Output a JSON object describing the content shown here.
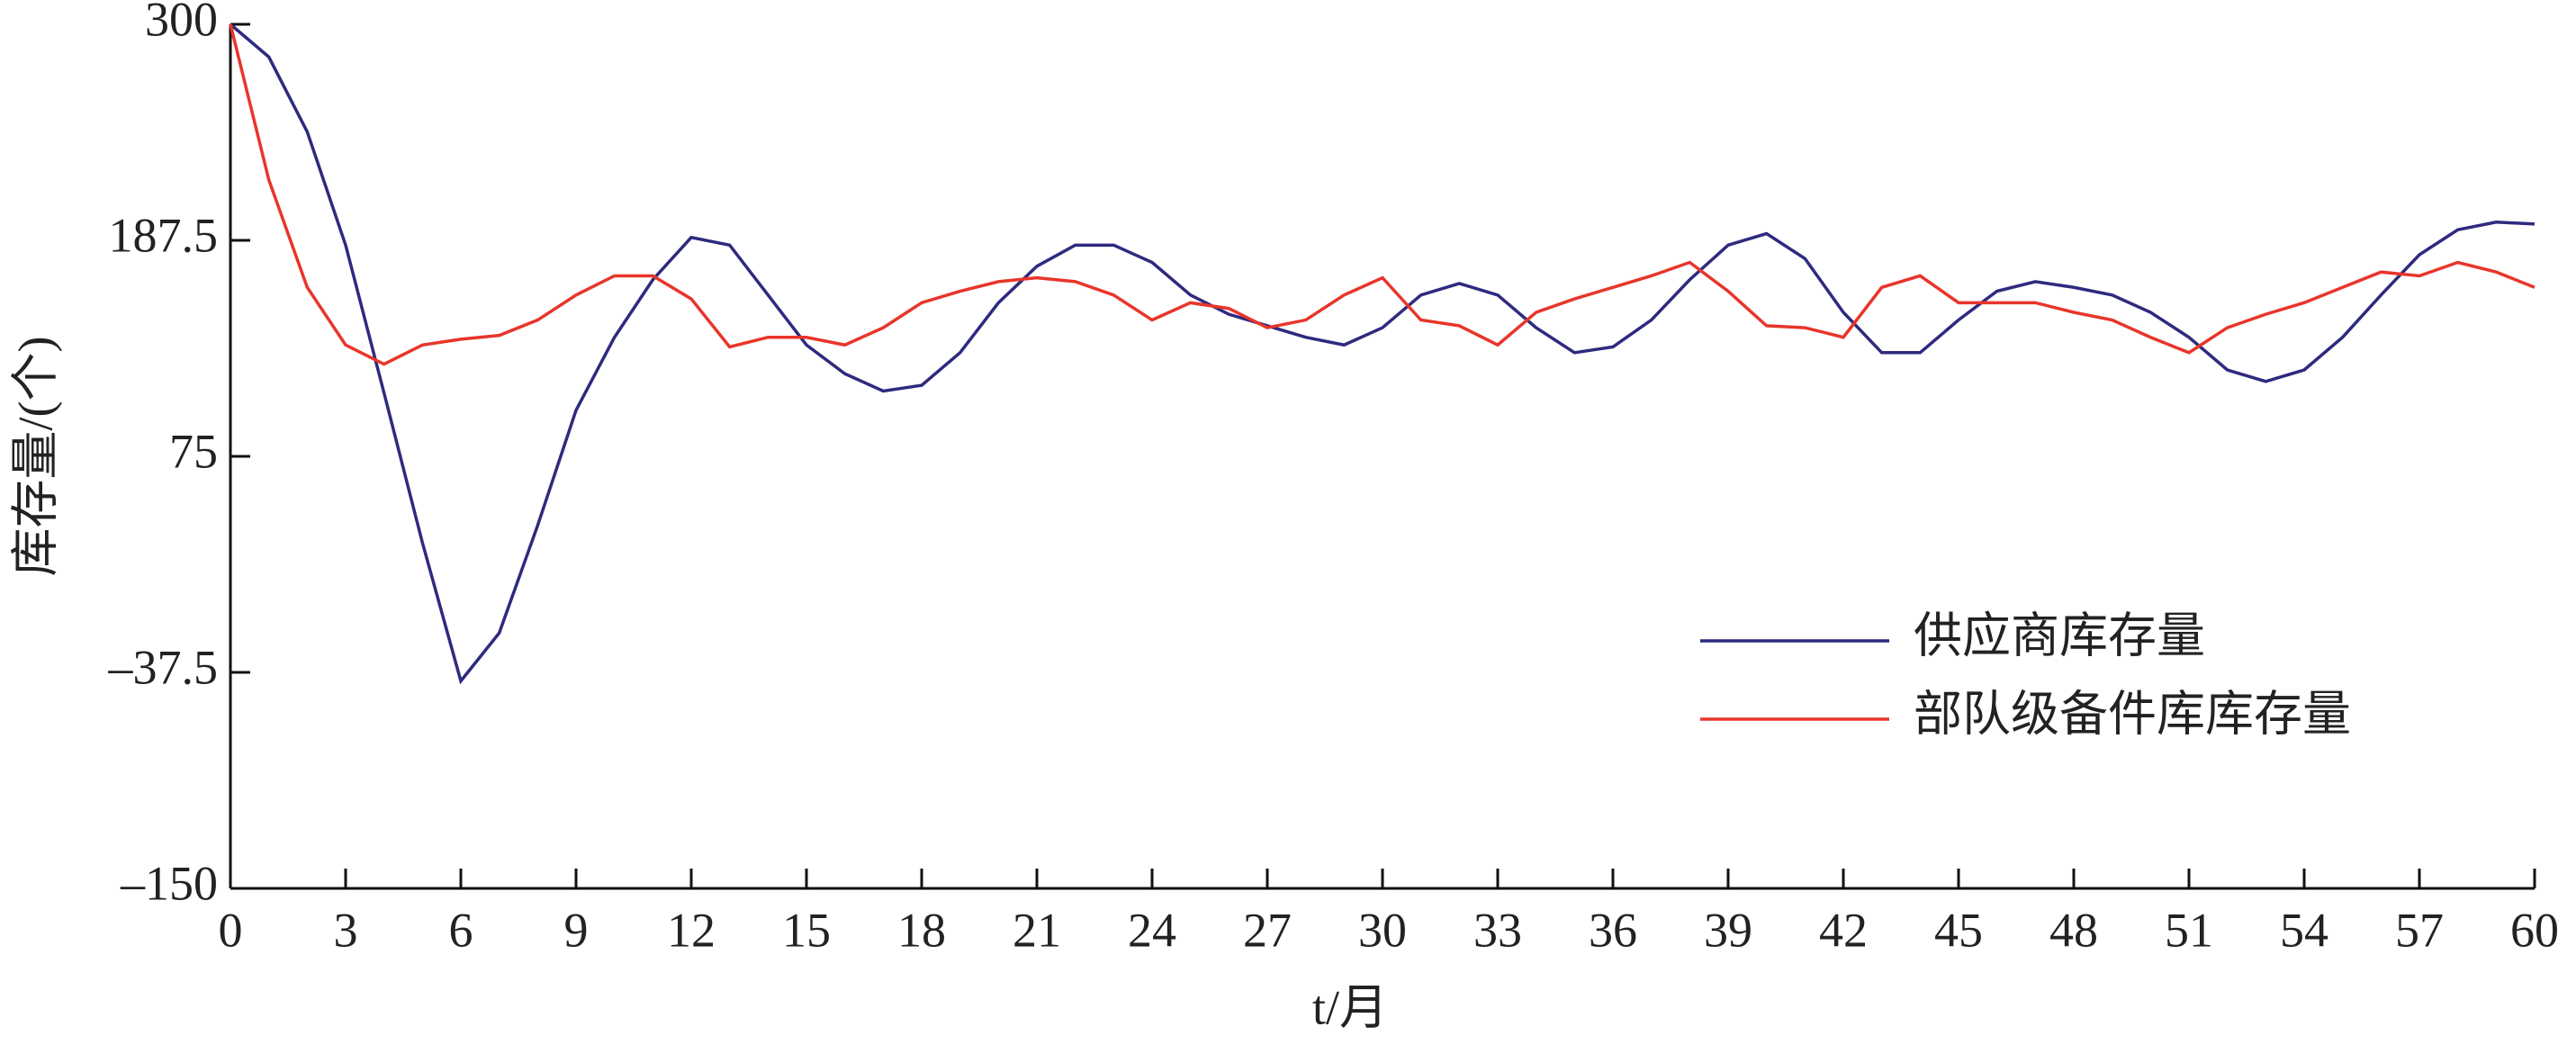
{
  "chart_data": {
    "type": "line",
    "x_label": "t/月",
    "y_label": "库存量/(个)",
    "x": [
      0,
      1,
      2,
      3,
      4,
      5,
      6,
      7,
      8,
      9,
      10,
      11,
      12,
      13,
      14,
      15,
      16,
      17,
      18,
      19,
      20,
      21,
      22,
      23,
      24,
      25,
      26,
      27,
      28,
      29,
      30,
      31,
      32,
      33,
      34,
      35,
      36,
      37,
      38,
      39,
      40,
      41,
      42,
      43,
      44,
      45,
      46,
      47,
      48,
      49,
      50,
      51,
      52,
      53,
      54,
      55,
      56,
      57,
      58,
      59,
      60
    ],
    "series": [
      {
        "name": "供应商库存量",
        "color": "#2e2a7f",
        "values": [
          300,
          283,
          244,
          185,
          108,
          30,
          -42,
          -17,
          39,
          99,
          137,
          167,
          189,
          185,
          159,
          133,
          118,
          109,
          112,
          129,
          155,
          174,
          185,
          185,
          176,
          159,
          149,
          143,
          137,
          133,
          142,
          159,
          165,
          159,
          142,
          129,
          132,
          146,
          167,
          185,
          191,
          178,
          150,
          129,
          129,
          146,
          161,
          166,
          163,
          159,
          150,
          137,
          120,
          114,
          120,
          137,
          159,
          180,
          193,
          197,
          196
        ]
      },
      {
        "name": "部队级备件库库存量",
        "color": "#e8352b",
        "values": [
          300,
          219,
          163,
          133,
          123,
          133,
          136,
          138,
          146,
          159,
          169,
          169,
          157,
          132,
          137,
          137,
          133,
          142,
          155,
          161,
          166,
          168,
          166,
          159,
          146,
          155,
          152,
          142,
          146,
          159,
          168,
          146,
          143,
          133,
          150,
          157,
          163,
          169,
          176,
          161,
          143,
          142,
          137,
          163,
          169,
          155,
          155,
          155,
          150,
          146,
          137,
          129,
          142,
          149,
          155,
          163,
          171,
          169,
          176,
          171,
          163
        ]
      }
    ],
    "xlim": [
      0,
      60
    ],
    "ylim": [
      -150,
      300
    ],
    "xticks": [
      0,
      3,
      6,
      9,
      12,
      15,
      18,
      21,
      24,
      27,
      30,
      33,
      36,
      39,
      42,
      45,
      48,
      51,
      54,
      57,
      60
    ],
    "yticks": [
      {
        "value": -150,
        "label": "–150"
      },
      {
        "value": -37.5,
        "label": "–37.5"
      },
      75,
      187.5,
      300
    ]
  }
}
